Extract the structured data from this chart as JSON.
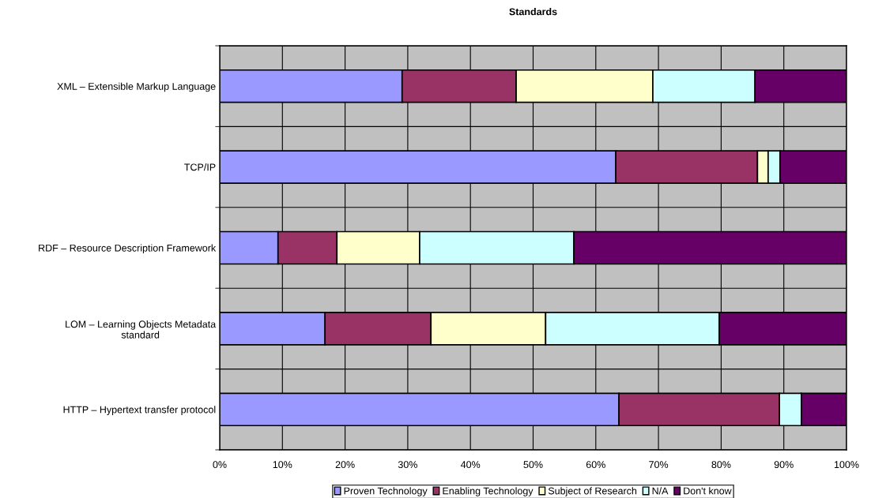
{
  "chart_data": {
    "type": "bar",
    "orientation": "horizontal",
    "stacked": true,
    "title": "Standards",
    "categories": [
      "XML – Extensible Markup Language",
      "TCP/IP",
      "RDF – Resource Description Framework",
      "LOM – Learning Objects Metadata\nstandard",
      "HTTP – Hypertext transfer protocol"
    ],
    "series": [
      {
        "name": "Proven Technology",
        "color": "#9999ff",
        "values": [
          29.1,
          63.2,
          9.3,
          16.8,
          63.7
        ]
      },
      {
        "name": "Enabling Technology",
        "color": "#993366",
        "values": [
          18.2,
          22.6,
          9.4,
          16.9,
          25.6
        ]
      },
      {
        "name": "Subject of Research",
        "color": "#ffffcc",
        "values": [
          21.8,
          1.7,
          13.2,
          18.3,
          null
        ]
      },
      {
        "name": "N/A",
        "color": "#ccffff",
        "values": [
          16.3,
          1.9,
          24.6,
          27.7,
          3.5
        ]
      },
      {
        "name": "Don't know",
        "color": "#660066",
        "values": [
          14.6,
          10.6,
          43.5,
          20.3,
          7.2
        ]
      }
    ],
    "xlim": [
      0,
      100
    ],
    "xticks": [
      {
        "value": 0,
        "label": "0%"
      },
      {
        "value": 10,
        "label": "10%"
      },
      {
        "value": 20,
        "label": "20%"
      },
      {
        "value": 30,
        "label": "30%"
      },
      {
        "value": 40,
        "label": "40%"
      },
      {
        "value": 50,
        "label": "50%"
      },
      {
        "value": 60,
        "label": "60%"
      },
      {
        "value": 70,
        "label": "70%"
      },
      {
        "value": 80,
        "label": "80%"
      },
      {
        "value": 90,
        "label": "90%"
      },
      {
        "value": 100,
        "label": "100%"
      }
    ],
    "grid": true,
    "legend": "bottom"
  }
}
